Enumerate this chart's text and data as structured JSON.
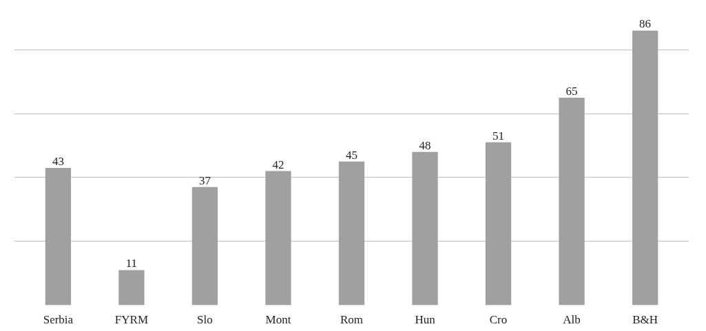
{
  "chart_data": {
    "type": "bar",
    "categories": [
      "Serbia",
      "FYRM",
      "Slo",
      "Mont",
      "Rom",
      "Hun",
      "Cro",
      "Alb",
      "B&H"
    ],
    "values": [
      43,
      11,
      37,
      42,
      45,
      48,
      51,
      65,
      86
    ],
    "color": "#a0a0a0",
    "data_labels": true,
    "grid": "y",
    "tick_labels": "x"
  }
}
